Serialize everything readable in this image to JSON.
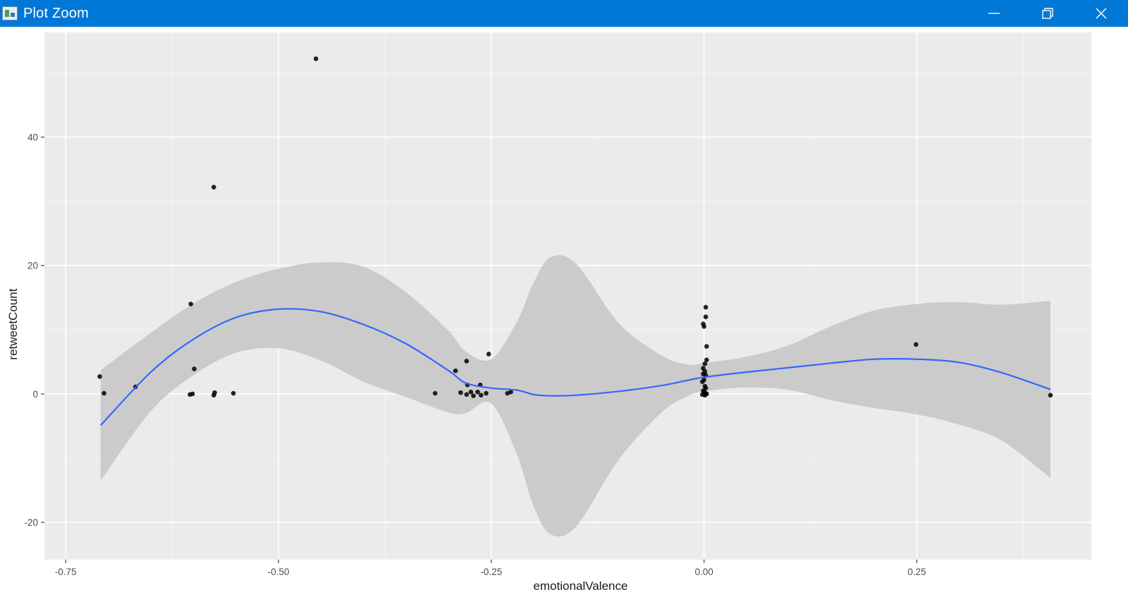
{
  "window": {
    "title": "Plot Zoom",
    "icons": {
      "app": "plot-zoom-app-icon",
      "minimize": "minimize-icon",
      "maximize": "restore-icon",
      "close": "close-icon"
    }
  },
  "colors": {
    "titlebar": "#0078d7",
    "panel": "#ebebeb",
    "grid_major": "#ffffff",
    "ribbon": "#c9c9c9",
    "smooth_line": "#3366ff",
    "points": "#000000"
  },
  "chart_data": {
    "type": "scatter",
    "xlabel": "emotionalValence",
    "ylabel": "retweetCount",
    "xlim": [
      -0.775,
      0.455
    ],
    "ylim": [
      -25.8,
      56.3
    ],
    "x_ticks": [
      -0.75,
      -0.5,
      -0.25,
      0.0,
      0.25
    ],
    "x_tick_labels": [
      "-0.75",
      "-0.50",
      "-0.25",
      "0.00",
      "0.25"
    ],
    "y_ticks": [
      -20,
      0,
      20,
      40
    ],
    "y_tick_labels": [
      "-20",
      "0",
      "20",
      "40"
    ],
    "grid": true,
    "points": [
      {
        "x": -0.71,
        "y": 2.7
      },
      {
        "x": -0.705,
        "y": 0.1
      },
      {
        "x": -0.668,
        "y": 1.1
      },
      {
        "x": -0.603,
        "y": 14.0
      },
      {
        "x": -0.599,
        "y": 3.9
      },
      {
        "x": -0.604,
        "y": -0.1
      },
      {
        "x": -0.601,
        "y": 0.0
      },
      {
        "x": -0.576,
        "y": 32.2
      },
      {
        "x": -0.575,
        "y": 0.2
      },
      {
        "x": -0.576,
        "y": -0.2
      },
      {
        "x": -0.553,
        "y": 0.1
      },
      {
        "x": -0.456,
        "y": 52.2
      },
      {
        "x": -0.316,
        "y": 0.1
      },
      {
        "x": -0.292,
        "y": 3.6
      },
      {
        "x": -0.286,
        "y": 0.2
      },
      {
        "x": -0.279,
        "y": 5.1
      },
      {
        "x": -0.278,
        "y": 1.4
      },
      {
        "x": -0.279,
        "y": -0.1
      },
      {
        "x": -0.274,
        "y": 0.3
      },
      {
        "x": -0.271,
        "y": -0.3
      },
      {
        "x": -0.266,
        "y": 0.3
      },
      {
        "x": -0.263,
        "y": 1.4
      },
      {
        "x": -0.262,
        "y": -0.2
      },
      {
        "x": -0.256,
        "y": 0.1
      },
      {
        "x": -0.253,
        "y": 6.2
      },
      {
        "x": -0.231,
        "y": 0.1
      },
      {
        "x": -0.227,
        "y": 0.3
      },
      {
        "x": -0.001,
        "y": 10.9
      },
      {
        "x": 0.0,
        "y": 10.5
      },
      {
        "x": 0.002,
        "y": 13.5
      },
      {
        "x": 0.002,
        "y": 12.0
      },
      {
        "x": 0.003,
        "y": 7.4
      },
      {
        "x": 0.003,
        "y": 5.3
      },
      {
        "x": 0.001,
        "y": 4.7
      },
      {
        "x": -0.001,
        "y": 4.0
      },
      {
        "x": 0.001,
        "y": 3.5
      },
      {
        "x": -0.001,
        "y": 3.1
      },
      {
        "x": 0.002,
        "y": 2.9
      },
      {
        "x": 0.0,
        "y": 2.2
      },
      {
        "x": -0.002,
        "y": 1.9
      },
      {
        "x": 0.001,
        "y": 1.2
      },
      {
        "x": 0.002,
        "y": 0.9
      },
      {
        "x": -0.001,
        "y": 0.5
      },
      {
        "x": 0.0,
        "y": 0.3
      },
      {
        "x": 0.002,
        "y": 0.1
      },
      {
        "x": -0.002,
        "y": -0.1
      },
      {
        "x": 0.001,
        "y": -0.2
      },
      {
        "x": 0.003,
        "y": 0.0
      },
      {
        "x": 0.249,
        "y": 7.7
      },
      {
        "x": 0.407,
        "y": -0.2
      }
    ],
    "smooth": {
      "x": [
        -0.709,
        -0.65,
        -0.6,
        -0.55,
        -0.5,
        -0.45,
        -0.4,
        -0.35,
        -0.3,
        -0.28,
        -0.25,
        -0.22,
        -0.2,
        -0.18,
        -0.15,
        -0.1,
        -0.05,
        -0.02,
        0.0,
        0.05,
        0.1,
        0.15,
        0.2,
        0.25,
        0.3,
        0.35,
        0.407
      ],
      "y": [
        -4.9,
        3.4,
        8.5,
        11.9,
        13.2,
        12.8,
        10.8,
        7.8,
        3.6,
        1.7,
        0.9,
        0.6,
        -0.1,
        -0.3,
        -0.2,
        0.4,
        1.3,
        2.1,
        2.6,
        3.4,
        4.1,
        4.8,
        5.4,
        5.4,
        4.9,
        3.3,
        0.7
      ],
      "upper": [
        3.7,
        9.5,
        14.1,
        17.4,
        19.5,
        20.5,
        19.8,
        15.8,
        9.8,
        6.6,
        5.4,
        11.2,
        17.4,
        21.3,
        20.2,
        11.0,
        6.0,
        4.6,
        4.8,
        5.8,
        7.6,
        10.6,
        13.0,
        14.0,
        14.3,
        13.9,
        14.5
      ],
      "lower": [
        -13.5,
        -2.7,
        2.9,
        6.4,
        7.1,
        5.2,
        1.9,
        -0.5,
        -2.9,
        -3.0,
        -1.5,
        -9.4,
        -17.6,
        -21.9,
        -20.6,
        -10.2,
        -2.9,
        -0.4,
        0.4,
        1.0,
        0.6,
        -1.0,
        -2.2,
        -3.2,
        -4.8,
        -7.3,
        -13.1
      ]
    }
  }
}
